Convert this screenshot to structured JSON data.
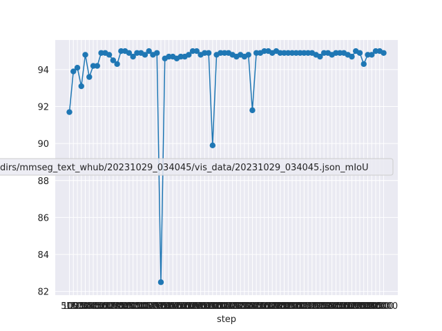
{
  "colors": {
    "plot_bg": "#EAEAF2",
    "grid": "#FFFFFF",
    "series": "#1F77B4",
    "legend_border": "#CCCCCC"
  },
  "chart_data": {
    "type": "line",
    "title": "",
    "xlabel": "step",
    "ylabel": "",
    "ylim": [
      81.8,
      95.6
    ],
    "y_ticks": [
      82,
      84,
      86,
      88,
      90,
      92,
      94
    ],
    "x_tick_labels": [
      "500",
      "1000",
      "1500",
      "2000",
      "2500",
      "3000",
      "3500",
      "4000",
      "4500",
      "5000",
      "5500",
      "6000",
      "6500",
      "7000",
      "7500",
      "8000",
      "8500",
      "9000",
      "9500",
      "10000",
      "10500",
      "11000",
      "11500",
      "12000",
      "12500",
      "13000",
      "13500",
      "14000",
      "14500",
      "15000",
      "15500",
      "16000",
      "16500",
      "17000",
      "17500",
      "18000",
      "18500",
      "19000",
      "19500",
      "20000",
      "20500",
      "21000",
      "21500",
      "22000",
      "22500",
      "23000",
      "23500",
      "24000",
      "24500",
      "25000",
      "25500",
      "26000",
      "26500",
      "27000",
      "27500",
      "28000",
      "28500",
      "29000",
      "29500",
      "30000",
      "30500",
      "31000",
      "31500",
      "32000",
      "32500",
      "33000",
      "33500",
      "34000",
      "34500",
      "35000",
      "35500",
      "36000",
      "36500",
      "37000",
      "37500",
      "38000",
      "38500",
      "39000",
      "39500",
      "40000"
    ],
    "grid": true,
    "legend_placement": "center-left, overflowing",
    "series": [
      {
        "name": "dirs/mmseg_text_whub/20231029_034045/vis_data/20231029_034045.json_mIoU",
        "x": [
          500,
          1000,
          1500,
          2000,
          2500,
          3000,
          3500,
          4000,
          4500,
          5000,
          5500,
          6000,
          6500,
          7000,
          7500,
          8000,
          8500,
          9000,
          9500,
          10000,
          10500,
          11000,
          11500,
          12000,
          12500,
          13000,
          13500,
          14000,
          14500,
          15000,
          15500,
          16000,
          16500,
          17000,
          17500,
          18000,
          18500,
          19000,
          19500,
          20000,
          20500,
          21000,
          21500,
          22000,
          22500,
          23000,
          23500,
          24000,
          24500,
          25000,
          25500,
          26000,
          26500,
          27000,
          27500,
          28000,
          28500,
          29000,
          29500,
          30000,
          30500,
          31000,
          31500,
          32000,
          32500,
          33000,
          33500,
          34000,
          34500,
          35000,
          35500,
          36000,
          36500,
          37000,
          37500,
          38000,
          38500,
          39000,
          39500,
          40000
        ],
        "values": [
          91.7,
          93.9,
          94.1,
          93.1,
          94.8,
          93.6,
          94.2,
          94.2,
          94.9,
          94.9,
          94.8,
          94.5,
          94.3,
          95.0,
          95.0,
          94.9,
          94.7,
          94.9,
          94.9,
          94.8,
          95.0,
          94.8,
          94.9,
          82.5,
          94.6,
          94.7,
          94.7,
          94.6,
          94.7,
          94.7,
          94.8,
          95.0,
          95.0,
          94.8,
          94.9,
          94.9,
          89.9,
          94.8,
          94.9,
          94.9,
          94.9,
          94.8,
          94.7,
          94.8,
          94.7,
          94.8,
          91.8,
          94.9,
          94.9,
          95.0,
          95.0,
          94.9,
          95.0,
          94.9,
          94.9,
          94.9,
          94.9,
          94.9,
          94.9,
          94.9,
          94.9,
          94.9,
          94.8,
          94.7,
          94.9,
          94.9,
          94.8,
          94.9,
          94.9,
          94.9,
          94.8,
          94.7,
          95.0,
          94.9,
          94.3,
          94.8,
          94.8,
          95.0,
          95.0,
          94.9
        ]
      }
    ]
  }
}
